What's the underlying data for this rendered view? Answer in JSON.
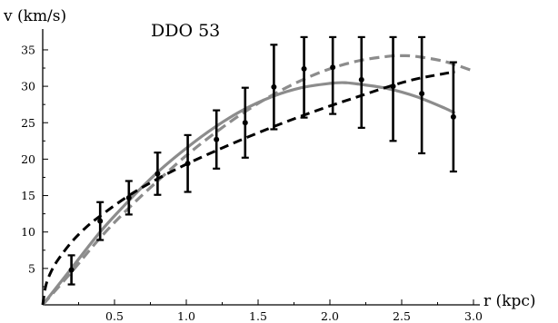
{
  "chart_data": {
    "type": "line",
    "title": "DDO 53",
    "xlabel": "r (kpc)",
    "ylabel": "v (km/s)",
    "xlim": [
      0,
      3.05
    ],
    "ylim": [
      0,
      36.5
    ],
    "x_ticks": [
      0.5,
      1.0,
      1.5,
      2.0,
      2.5,
      3.0
    ],
    "x_tick_labels": [
      "0.5",
      "1.0",
      "1.5",
      "2.0",
      "2.5",
      "3.0"
    ],
    "y_ticks": [
      5,
      10,
      15,
      20,
      25,
      30,
      35
    ],
    "y_tick_labels": [
      "5",
      "10",
      "15",
      "20",
      "25",
      "30",
      "35"
    ],
    "grid": false,
    "observations": [
      {
        "r": 0.2,
        "v": 4.8,
        "err": 2.0
      },
      {
        "r": 0.4,
        "v": 11.5,
        "err": 2.6
      },
      {
        "r": 0.6,
        "v": 14.7,
        "err": 2.3
      },
      {
        "r": 0.8,
        "v": 18.0,
        "err": 2.9
      },
      {
        "r": 1.01,
        "v": 19.4,
        "err": 3.9
      },
      {
        "r": 1.21,
        "v": 22.7,
        "err": 4.0
      },
      {
        "r": 1.41,
        "v": 25.0,
        "err": 4.8
      },
      {
        "r": 1.61,
        "v": 29.9,
        "err": 5.8
      },
      {
        "r": 1.82,
        "v": 32.4,
        "err": 6.7
      },
      {
        "r": 2.02,
        "v": 32.6,
        "err": 6.4
      },
      {
        "r": 2.22,
        "v": 30.9,
        "err": 6.6
      },
      {
        "r": 2.44,
        "v": 30.0,
        "err": 7.5
      },
      {
        "r": 2.64,
        "v": 29.0,
        "err": 8.2
      },
      {
        "r": 2.86,
        "v": 25.8,
        "err": 7.5
      }
    ],
    "series": [
      {
        "style": "solid-gray",
        "color": "#8c8c8c",
        "x": [
          0,
          0.2,
          0.4,
          0.6,
          0.8,
          1.0,
          1.2,
          1.4,
          1.6,
          1.8,
          2.0,
          2.1,
          2.2,
          2.4,
          2.6,
          2.8,
          2.87
        ],
        "y": [
          0,
          5.0,
          10.0,
          14.3,
          18.2,
          21.5,
          24.4,
          26.8,
          28.6,
          29.8,
          30.4,
          30.5,
          30.3,
          29.7,
          28.6,
          27.0,
          26.3
        ]
      },
      {
        "style": "dashed-gray",
        "color": "#8c8c8c",
        "x": [
          0,
          0.2,
          0.4,
          0.6,
          0.8,
          1.0,
          1.2,
          1.4,
          1.6,
          1.8,
          2.0,
          2.2,
          2.4,
          2.5,
          2.6,
          2.8,
          3.0
        ],
        "y": [
          0,
          4.5,
          9.2,
          13.3,
          17.0,
          20.5,
          23.6,
          26.4,
          28.8,
          30.8,
          32.4,
          33.5,
          34.1,
          34.2,
          34.1,
          33.4,
          32.1
        ]
      },
      {
        "style": "dashed-black",
        "color": "#000000",
        "x": [
          0,
          0.02,
          0.05,
          0.1,
          0.2,
          0.3,
          0.4,
          0.6,
          0.8,
          1.0,
          1.2,
          1.4,
          1.6,
          1.8,
          2.0,
          2.2,
          2.4,
          2.6,
          2.87
        ],
        "y": [
          0,
          2.5,
          4.2,
          6.0,
          8.6,
          10.6,
          12.2,
          15.0,
          17.3,
          19.3,
          21.1,
          22.8,
          24.4,
          25.9,
          27.3,
          28.6,
          29.9,
          31.0,
          32.0
        ]
      }
    ]
  }
}
